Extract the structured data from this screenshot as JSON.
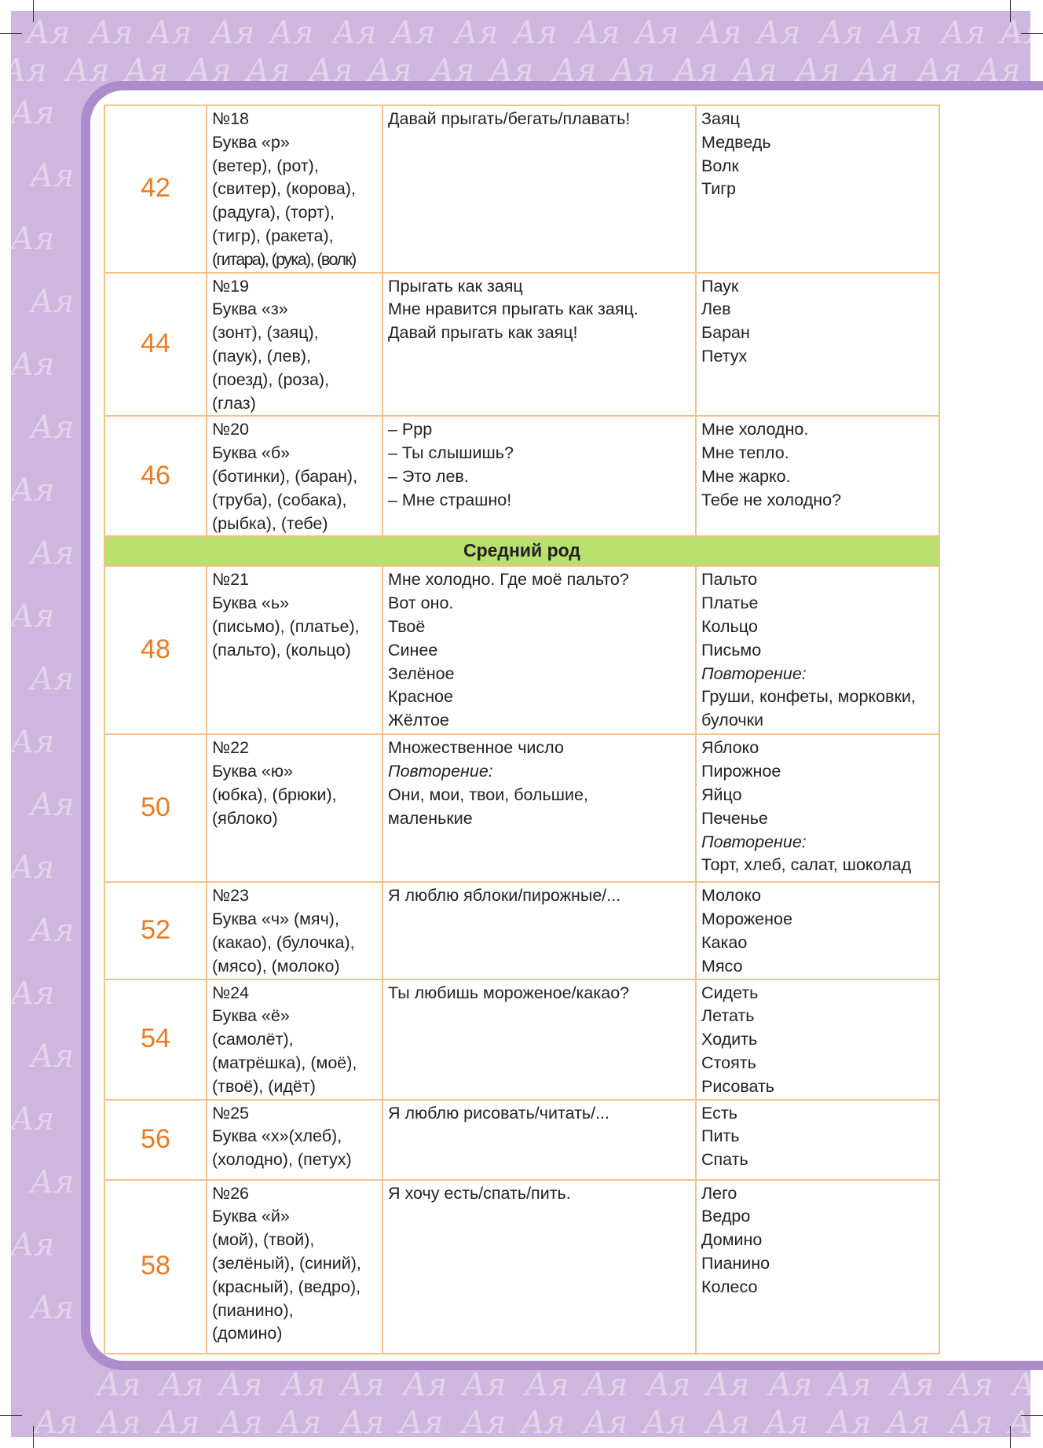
{
  "pattern_glyph": "Aя",
  "colors": {
    "background": "#cfb6de",
    "frame": "#ad8ccc",
    "border": "#f6c089",
    "page_number": "#ec7a22",
    "section": "#b9e06e"
  },
  "rows": [
    {
      "page": "42",
      "lesson": [
        "№18",
        "Буква «р»",
        "(ветер), (рот),",
        "(свитер), (корова),",
        "(радуга), (торт),",
        "(тигр), (ракета),",
        "(гитара), (рука), (волк)"
      ],
      "phrases": [
        {
          "t": "Давай прыгать/бегать/плавать!"
        }
      ],
      "words": [
        {
          "t": "Заяц"
        },
        {
          "t": "Медведь"
        },
        {
          "t": "Волк"
        },
        {
          "t": "Тигр"
        }
      ]
    },
    {
      "page": "44",
      "lesson": [
        "№19",
        "Буква «з»",
        "(зонт), (заяц),",
        "(паук), (лев),",
        "(поезд), (роза),",
        "(глаз)"
      ],
      "phrases": [
        {
          "t": "Прыгать как заяц"
        },
        {
          "t": "Мне нравится прыгать как заяц."
        },
        {
          "t": "Давай прыгать как заяц!"
        }
      ],
      "words": [
        {
          "t": "Паук"
        },
        {
          "t": "Лев"
        },
        {
          "t": "Баран"
        },
        {
          "t": "Петух"
        }
      ]
    },
    {
      "page": "46",
      "lesson": [
        "№20",
        "Буква «б»",
        "(ботинки), (баран),",
        "(труба), (собака),",
        "(рыбка), (тебе)"
      ],
      "phrases": [
        {
          "t": "– Ррр"
        },
        {
          "t": "– Ты слышишь?"
        },
        {
          "t": "– Это лев."
        },
        {
          "t": "– Мне страшно!"
        }
      ],
      "words": [
        {
          "t": "Мне холодно."
        },
        {
          "t": "Мне тепло."
        },
        {
          "t": "Мне жарко."
        },
        {
          "t": "Тебе не холодно?"
        }
      ]
    },
    {
      "section": "Средний род"
    },
    {
      "page": "48",
      "lesson": [
        "№21",
        "Буква «ь»",
        "(письмо), (платье),",
        "(пальто), (кольцо)"
      ],
      "phrases": [
        {
          "t": "Мне холодно. Где моё пальто?"
        },
        {
          "t": "Вот оно."
        },
        {
          "t": "Твоё"
        },
        {
          "t": "Синее"
        },
        {
          "t": "Зелёное"
        },
        {
          "t": "Красное"
        },
        {
          "t": "Жёлтое"
        }
      ],
      "words": [
        {
          "t": "Пальто"
        },
        {
          "t": "Платье"
        },
        {
          "t": "Кольцо"
        },
        {
          "t": "Письмо"
        },
        {
          "t": "Повторение:",
          "i": true
        },
        {
          "t": "Груши, конфеты, морковки,"
        },
        {
          "t": "булочки"
        }
      ]
    },
    {
      "page": "50",
      "lesson": [
        "№22",
        "Буква «ю»",
        "(юбка), (брюки),",
        "(яблоко)"
      ],
      "phrases": [
        {
          "t": "Множественное число"
        },
        {
          "t": "Повторение:",
          "i": true
        },
        {
          "t": "Они, мои, твои, большие,"
        },
        {
          "t": "маленькие"
        }
      ],
      "words": [
        {
          "t": "Яблоко"
        },
        {
          "t": "Пирожное"
        },
        {
          "t": "Яйцо"
        },
        {
          "t": "Печенье"
        },
        {
          "t": "Повторение:",
          "i": true
        },
        {
          "t": "Торт, хлеб, салат, шоколад"
        }
      ]
    },
    {
      "page": "52",
      "lesson": [
        "№23",
        "Буква «ч» (мяч),",
        "(какао), (булочка),",
        "(мясо), (молоко)"
      ],
      "phrases": [
        {
          "t": "Я люблю яблоки/пирожные/..."
        }
      ],
      "words": [
        {
          "t": "Молоко"
        },
        {
          "t": "Мороженое"
        },
        {
          "t": "Какао"
        },
        {
          "t": "Мясо"
        }
      ]
    },
    {
      "page": "54",
      "lesson": [
        "№24",
        " Буква «ё»",
        "(самолёт),",
        "(матрёшка), (моё),",
        "(твоё), (идёт)"
      ],
      "phrases": [
        {
          "t": "Ты любишь мороженое/какао?"
        }
      ],
      "words": [
        {
          "t": "Сидеть"
        },
        {
          "t": "Летать"
        },
        {
          "t": "Ходить"
        },
        {
          "t": "Стоять"
        },
        {
          "t": "Рисовать"
        }
      ]
    },
    {
      "page": "56",
      "lesson": [
        "№25",
        "Буква «х»(хлеб),",
        "(холодно), (петух)"
      ],
      "phrases": [
        {
          "t": "Я люблю рисовать/читать/..."
        }
      ],
      "words": [
        {
          "t": "Есть"
        },
        {
          "t": "Пить"
        },
        {
          "t": "Спать"
        }
      ]
    },
    {
      "page": "58",
      "lesson": [
        "№26",
        "Буква «й»",
        "(мой), (твой),",
        "(зелёный), (синий),",
        "(красный), (ведро),",
        "(пианино),",
        "(домино)"
      ],
      "phrases": [
        {
          "t": "Я хочу есть/спать/пить."
        }
      ],
      "words": [
        {
          "t": "Лего"
        },
        {
          "t": "Ведро"
        },
        {
          "t": "Домино"
        },
        {
          "t": "Пианино"
        },
        {
          "t": "Колесо"
        }
      ]
    }
  ]
}
